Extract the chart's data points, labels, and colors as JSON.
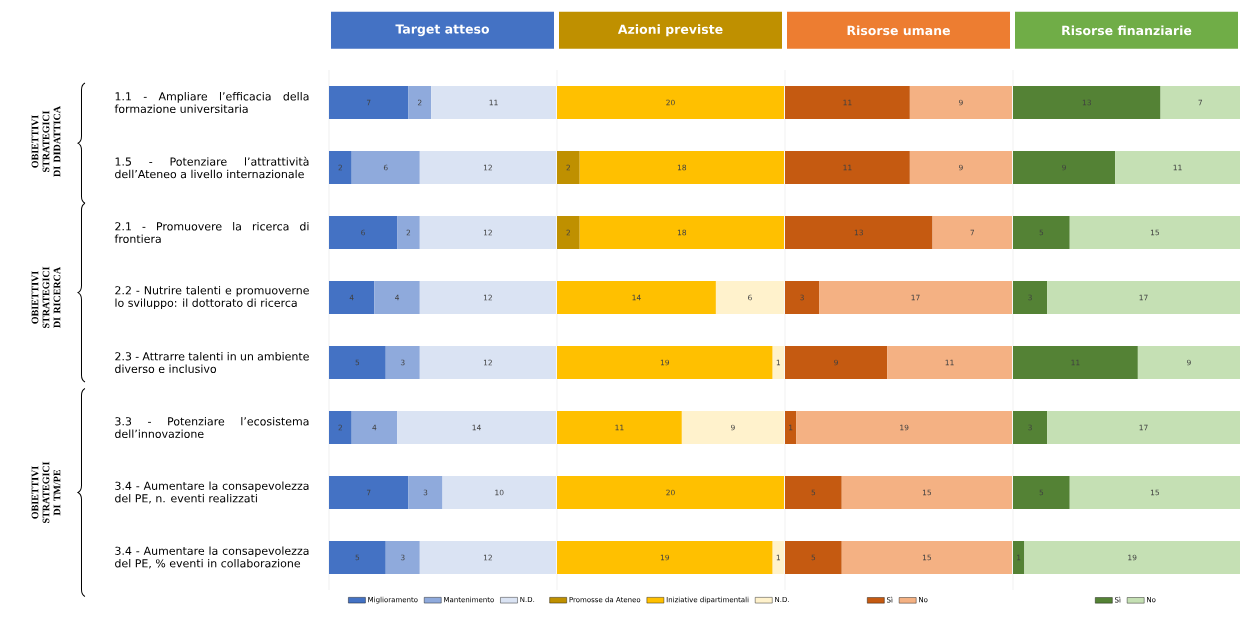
{
  "chart_data": [
    {
      "type": "bar",
      "orientation": "horizontal",
      "stacked": true,
      "title": "Target atteso",
      "data_labels": true,
      "legend": "bottom",
      "tick_labels": "y",
      "xlim": [
        0,
        20
      ],
      "categories": [
        "1.1 - Ampliare l’efficacia della formazione universitaria",
        "1.5 - Potenziare l’attrattività dell’Ateneo a livello internazionale",
        "2.1 - Promuovere la ricerca di frontiera",
        "2.2 - Nutrire talenti e promuoverne lo sviluppo: il dottorato di ricerca",
        "2.3 - Attrarre talenti in un ambiente diverso e inclusivo",
        "3.3 - Potenziare l’ecosistema dell’innovazione",
        "3.4 - Aumentare la consapevolezza del PE, n. eventi realizzati",
        "3.4 - Aumentare la consapevolezza del PE, % eventi in collaborazione"
      ],
      "annotations": [
        "OBIETTIVI STRATEGICI DI DIDATTICA",
        "OBIETTIVI STRATEGICI DI RICERCA",
        "OBIETTIVI STRATEGICI DI TM/PE"
      ],
      "series": [
        {
          "name": "Miglioramento",
          "color": "#4472c4",
          "values": [
            7,
            2,
            6,
            4,
            5,
            2,
            7,
            5
          ]
        },
        {
          "name": "Mantenimento",
          "color": "#8faadc",
          "values": [
            2,
            6,
            2,
            4,
            3,
            4,
            3,
            3
          ]
        },
        {
          "name": "N.D.",
          "color": "#dae3f3",
          "values": [
            11,
            12,
            12,
            12,
            12,
            14,
            10,
            12
          ]
        }
      ]
    },
    {
      "type": "bar",
      "orientation": "horizontal",
      "stacked": true,
      "title": "Azioni previste",
      "data_labels": true,
      "legend": "bottom",
      "tick_labels": false,
      "xlim": [
        0,
        20
      ],
      "categories": [
        null,
        null,
        null,
        null,
        null,
        null,
        null,
        null
      ],
      "series": [
        {
          "name": "Promosse da Ateneo",
          "color": "#bf9000",
          "values": [
            null,
            2,
            2,
            null,
            null,
            null,
            null,
            null
          ]
        },
        {
          "name": "Iniziative dipartimentali",
          "color": "#ffc000",
          "values": [
            20,
            18,
            18,
            14,
            19,
            11,
            20,
            19
          ]
        },
        {
          "name": "N.D.",
          "color": "#fff2cc",
          "values": [
            null,
            null,
            null,
            6,
            1,
            9,
            null,
            1
          ]
        }
      ]
    },
    {
      "type": "bar",
      "orientation": "horizontal",
      "stacked": true,
      "title": "Risorse umane",
      "data_labels": true,
      "legend": "bottom",
      "tick_labels": false,
      "xlim": [
        0,
        20
      ],
      "categories": [
        null,
        null,
        null,
        null,
        null,
        null,
        null,
        null
      ],
      "series": [
        {
          "name": "Sì",
          "color": "#c55a11",
          "values": [
            11,
            11,
            13,
            3,
            9,
            1,
            5,
            5
          ]
        },
        {
          "name": "No",
          "color": "#f4b183",
          "values": [
            9,
            9,
            7,
            17,
            11,
            19,
            15,
            15
          ]
        }
      ]
    },
    {
      "type": "bar",
      "orientation": "horizontal",
      "stacked": true,
      "title": "Risorse finanziarie",
      "data_labels": true,
      "legend": "bottom",
      "tick_labels": false,
      "xlim": [
        0,
        20
      ],
      "categories": [
        null,
        null,
        null,
        null,
        null,
        null,
        null,
        null
      ],
      "series": [
        {
          "name": "Sì",
          "color": "#548235",
          "values": [
            13,
            9,
            5,
            3,
            11,
            3,
            5,
            1
          ]
        },
        {
          "name": "No",
          "color": "#c5e0b4",
          "values": [
            7,
            11,
            15,
            17,
            9,
            17,
            15,
            19
          ]
        }
      ]
    }
  ]
}
